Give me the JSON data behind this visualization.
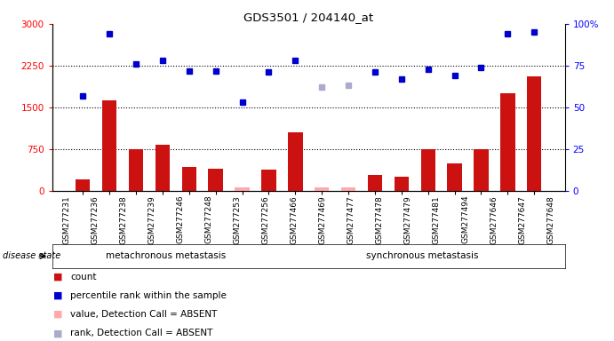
{
  "title": "GDS3501 / 204140_at",
  "samples": [
    "GSM277231",
    "GSM277236",
    "GSM277238",
    "GSM277239",
    "GSM277246",
    "GSM277248",
    "GSM277253",
    "GSM277256",
    "GSM277466",
    "GSM277469",
    "GSM277477",
    "GSM277478",
    "GSM277479",
    "GSM277481",
    "GSM277494",
    "GSM277646",
    "GSM277647",
    "GSM277648"
  ],
  "bar_values": [
    200,
    1620,
    750,
    830,
    430,
    400,
    60,
    380,
    1050,
    60,
    60,
    290,
    260,
    750,
    500,
    750,
    1750,
    2050
  ],
  "bar_absent": [
    false,
    false,
    false,
    false,
    false,
    false,
    true,
    false,
    false,
    true,
    true,
    false,
    false,
    false,
    false,
    false,
    false,
    false
  ],
  "rank_values": [
    57,
    94,
    76,
    78,
    72,
    72,
    53,
    71,
    78,
    62,
    63,
    71,
    67,
    73,
    69,
    74,
    94,
    95
  ],
  "rank_absent": [
    false,
    false,
    false,
    false,
    false,
    false,
    false,
    false,
    false,
    true,
    true,
    false,
    false,
    false,
    false,
    false,
    false,
    false
  ],
  "n_meta": 8,
  "n_sync": 10,
  "ylim_left": [
    0,
    3000
  ],
  "ylim_right": [
    0,
    100
  ],
  "yticks_left": [
    0,
    750,
    1500,
    2250,
    3000
  ],
  "yticks_right": [
    0,
    25,
    50,
    75,
    100
  ],
  "bar_color": "#cc1111",
  "bar_absent_color": "#ffaaaa",
  "rank_color": "#0000cc",
  "rank_absent_color": "#aaaacc",
  "meta_bg": "#bbeebb",
  "sync_bg": "#55dd55",
  "tick_bg": "#cccccc",
  "legend_items": [
    {
      "label": "count",
      "color": "#cc1111"
    },
    {
      "label": "percentile rank within the sample",
      "color": "#0000cc"
    },
    {
      "label": "value, Detection Call = ABSENT",
      "color": "#ffaaaa"
    },
    {
      "label": "rank, Detection Call = ABSENT",
      "color": "#aaaacc"
    }
  ]
}
